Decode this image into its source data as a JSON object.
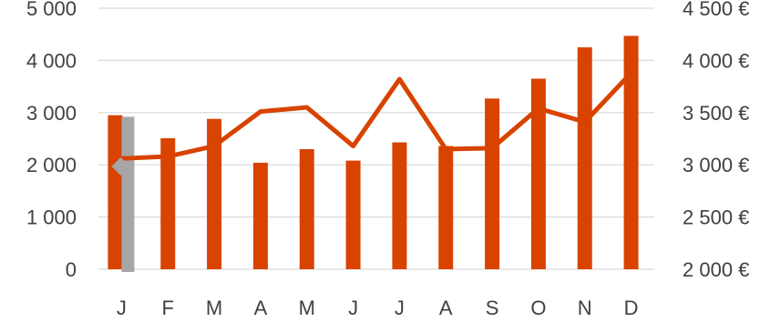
{
  "chart_data": {
    "type": "bar",
    "categories": [
      "J",
      "F",
      "M",
      "A",
      "M",
      "J",
      "J",
      "A",
      "S",
      "O",
      "N",
      "D"
    ],
    "series": [
      {
        "type": "bar",
        "axis": "left",
        "color": "#D84300",
        "values": [
          2950,
          2510,
          2880,
          2040,
          2300,
          2080,
          2430,
          2360,
          3270,
          3650,
          4250,
          4470
        ]
      },
      {
        "type": "line",
        "axis": "right",
        "color": "#D84300",
        "values": [
          3060,
          3080,
          3180,
          3510,
          3550,
          3180,
          3820,
          3150,
          3160,
          3540,
          3410,
          3880
        ]
      }
    ],
    "highlight": {
      "category_index": 0,
      "bar_value": 2920,
      "marker_value": 1970,
      "bar_color": "#A6A6A6",
      "marker_color": "#A6A6A6"
    },
    "y_left": {
      "min": 0,
      "max": 5000,
      "step": 1000,
      "tick_labels": [
        "0",
        "1 000",
        "2 000",
        "3 000",
        "4 000",
        "5 000"
      ]
    },
    "y_right": {
      "min": 2000,
      "max": 4500,
      "step": 500,
      "tick_labels": [
        "2 000 €",
        "2 500 €",
        "3 000 €",
        "3 500 €",
        "4 000 €",
        "4 500 €"
      ]
    },
    "grid": true,
    "grid_color": "#D9D9D9",
    "legend": "none"
  }
}
